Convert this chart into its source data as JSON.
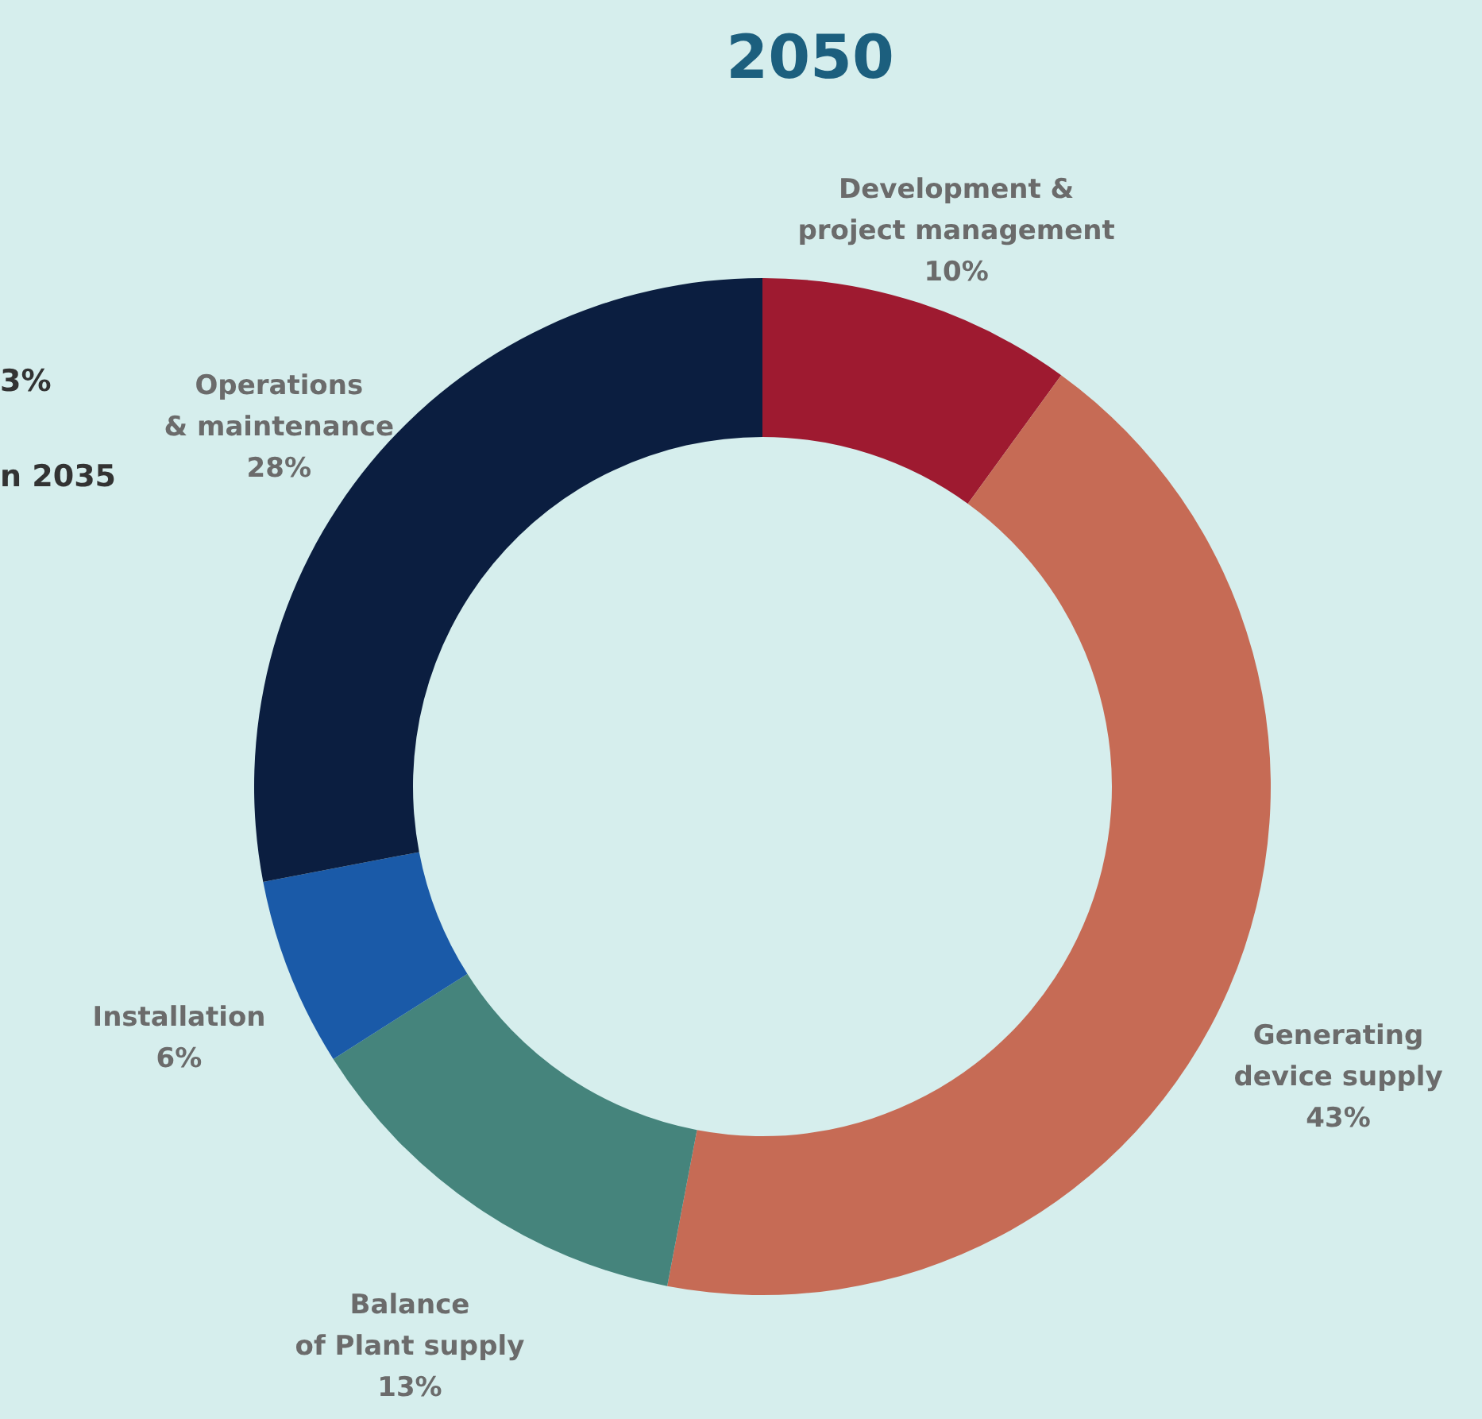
{
  "chart_data": {
    "type": "donut",
    "title": "2050",
    "categories": [
      "Development &\nproject management",
      "Generating\ndevice supply",
      "Balance\nof Plant supply",
      "Installation",
      "Operations\n& maintenance"
    ],
    "values": [
      10,
      43,
      13,
      6,
      28
    ],
    "value_labels": [
      "10%",
      "43%",
      "13%",
      "6%",
      "28%"
    ],
    "colors": [
      "#9e1a30",
      "#c66b55",
      "#45847c",
      "#1a5aa8",
      "#0b1e40"
    ],
    "annotations": [
      "3%",
      "n 2035"
    ]
  }
}
